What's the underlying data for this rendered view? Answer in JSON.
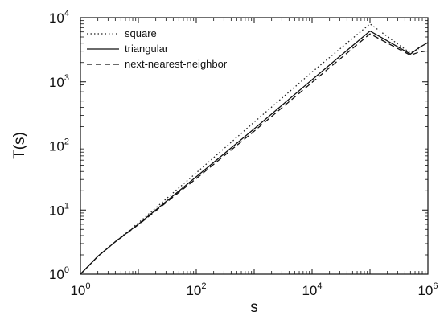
{
  "chart_data": {
    "type": "line",
    "title": "",
    "xlabel": "s",
    "ylabel": "T(s)",
    "x_scale": "log",
    "y_scale": "log",
    "xlim": [
      1,
      1000000
    ],
    "ylim": [
      1,
      10000
    ],
    "grid": false,
    "legend_position": "top-left",
    "x_ticks": [
      {
        "base": "10",
        "exp": "0",
        "value": 1
      },
      {
        "base": "10",
        "exp": "2",
        "value": 100
      },
      {
        "base": "10",
        "exp": "4",
        "value": 10000
      },
      {
        "base": "10",
        "exp": "6",
        "value": 1000000
      }
    ],
    "y_ticks": [
      {
        "base": "10",
        "exp": "0",
        "value": 1
      },
      {
        "base": "10",
        "exp": "1",
        "value": 10
      },
      {
        "base": "10",
        "exp": "2",
        "value": 100
      },
      {
        "base": "10",
        "exp": "3",
        "value": 1000
      },
      {
        "base": "10",
        "exp": "4",
        "value": 10000
      }
    ],
    "series": [
      {
        "name": "square",
        "style": "dotted",
        "color": "#222222",
        "x": [
          1,
          2,
          4,
          10,
          100,
          1000,
          10000,
          100000,
          500000,
          700000
        ],
        "y": [
          1.0,
          1.9,
          3.2,
          6.3,
          38,
          235,
          1420,
          8000,
          2800,
          3300
        ]
      },
      {
        "name": "triangular",
        "style": "solid",
        "color": "#111111",
        "x": [
          1,
          2,
          4,
          10,
          100,
          1000,
          10000,
          100000,
          500000,
          700000,
          1000000
        ],
        "y": [
          1.0,
          1.9,
          3.2,
          6.0,
          33,
          185,
          1080,
          6200,
          2700,
          3400,
          4100
        ]
      },
      {
        "name": "next-nearest-neighbor",
        "style": "dashed",
        "color": "#111111",
        "x": [
          1,
          2,
          4,
          10,
          100,
          1000,
          10000,
          100000,
          500000,
          700000,
          900000
        ],
        "y": [
          1.0,
          1.9,
          3.2,
          5.9,
          31,
          170,
          980,
          5600,
          2600,
          2900,
          3000
        ]
      }
    ]
  }
}
